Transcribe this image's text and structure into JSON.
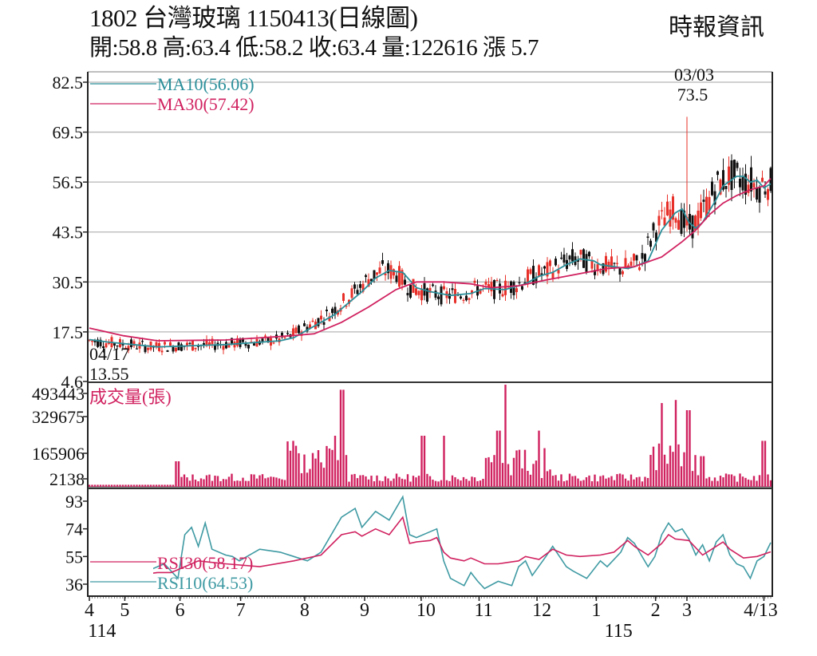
{
  "header": {
    "title": "1802  台灣玻璃 1150413(日線圖)",
    "ohlc_line": "開:58.8 高:63.4 低:58.2 收:63.4 量:122616 漲 5.7",
    "source": "時報資訊"
  },
  "chart_data": [
    {
      "type": "candlestick",
      "title": "1802 台灣玻璃 1150413(日線圖)",
      "summary": {
        "stock_code": "1802",
        "stock_name": "台灣玻璃",
        "date": "1150413",
        "period": "日線圖",
        "open": 58.8,
        "high": 63.4,
        "low": 58.2,
        "close": 63.4,
        "volume": 122616,
        "change": 5.7
      },
      "ylim": [
        4.6,
        82.5
      ],
      "yticks": [
        "82.5",
        "69.5",
        "56.5",
        "43.5",
        "30.5",
        "17.5",
        "4.6"
      ],
      "grid": true,
      "legend": [
        {
          "name": "MA10",
          "value": "56.06",
          "label": "MA10(56.06)",
          "color": "#2b8f9a"
        },
        {
          "name": "MA30",
          "value": "57.42",
          "label": "MA30(57.42)",
          "color": "#d0215f"
        }
      ],
      "annotations": [
        {
          "date": "03/03",
          "value": "73.5",
          "kind": "high"
        },
        {
          "date": "04/17",
          "value": "13.55",
          "kind": "low"
        }
      ],
      "up_color": "#e8302a",
      "down_color": "#111111",
      "series": [
        {
          "name": "MA10",
          "points": [
            [
              0,
              15.5
            ],
            [
              0.03,
              14.8
            ],
            [
              0.1,
              13.6
            ],
            [
              0.2,
              14.2
            ],
            [
              0.28,
              15.2
            ],
            [
              0.3,
              16.0
            ],
            [
              0.33,
              19
            ],
            [
              0.36,
              22
            ],
            [
              0.38,
              25
            ],
            [
              0.4,
              28
            ],
            [
              0.42,
              31.5
            ],
            [
              0.44,
              33.5
            ],
            [
              0.46,
              33
            ],
            [
              0.48,
              29
            ],
            [
              0.5,
              28
            ],
            [
              0.53,
              27
            ],
            [
              0.56,
              27.5
            ],
            [
              0.58,
              28.8
            ],
            [
              0.61,
              28.5
            ],
            [
              0.64,
              30
            ],
            [
              0.66,
              32
            ],
            [
              0.68,
              33
            ],
            [
              0.7,
              35
            ],
            [
              0.72,
              36.5
            ],
            [
              0.74,
              36
            ],
            [
              0.75,
              35
            ],
            [
              0.77,
              34.5
            ],
            [
              0.79,
              34
            ],
            [
              0.8,
              34.5
            ],
            [
              0.82,
              36
            ],
            [
              0.84,
              44
            ],
            [
              0.86,
              48.5
            ],
            [
              0.87,
              49.5
            ],
            [
              0.88,
              46
            ],
            [
              0.89,
              44.5
            ],
            [
              0.9,
              46
            ],
            [
              0.92,
              52
            ],
            [
              0.93,
              55.5
            ],
            [
              0.95,
              58
            ],
            [
              0.96,
              58
            ],
            [
              0.97,
              56.5
            ],
            [
              0.98,
              57
            ],
            [
              0.99,
              55
            ],
            [
              1.0,
              56.06
            ]
          ]
        },
        {
          "name": "MA30",
          "points": [
            [
              0,
              18.5
            ],
            [
              0.05,
              16.5
            ],
            [
              0.1,
              15.2
            ],
            [
              0.2,
              15.4
            ],
            [
              0.28,
              16.3
            ],
            [
              0.33,
              17
            ],
            [
              0.37,
              20
            ],
            [
              0.41,
              24
            ],
            [
              0.45,
              28.5
            ],
            [
              0.48,
              30.5
            ],
            [
              0.52,
              30.5
            ],
            [
              0.56,
              30
            ],
            [
              0.59,
              29
            ],
            [
              0.63,
              29.5
            ],
            [
              0.67,
              31
            ],
            [
              0.7,
              32
            ],
            [
              0.73,
              33
            ],
            [
              0.76,
              34
            ],
            [
              0.8,
              34.5
            ],
            [
              0.84,
              37
            ],
            [
              0.87,
              41
            ],
            [
              0.89,
              44
            ],
            [
              0.91,
              48
            ],
            [
              0.93,
              51
            ],
            [
              0.95,
              53
            ],
            [
              0.97,
              54.5
            ],
            [
              0.99,
              55.5
            ],
            [
              1.0,
              57.42
            ]
          ]
        }
      ]
    },
    {
      "type": "bar",
      "title": "成交量(張)",
      "legend_label": "成交量(張)",
      "yticks": [
        "493443",
        "329675",
        "165906",
        "2138"
      ],
      "ylim": [
        0,
        520000
      ],
      "color": "#d0215f",
      "approx_peaks": [
        {
          "month": "8/9 boundary",
          "value": 470000
        },
        {
          "month": "11",
          "value": 520000
        },
        {
          "month": "1-2",
          "value": 420000
        },
        {
          "month": "3",
          "value": 380000
        },
        {
          "month": "4/13",
          "value": 122616
        }
      ]
    },
    {
      "type": "line",
      "title": "RSI",
      "yticks": [
        "93",
        "74",
        "55",
        "36"
      ],
      "ylim": [
        30,
        98
      ],
      "legend": [
        {
          "name": "RSI30",
          "value": "58.17",
          "label": "RSI30(58.17)",
          "color": "#d0215f"
        },
        {
          "name": "RSI10",
          "value": "64.53",
          "label": "RSI10(64.53)",
          "color": "#3f9aa3"
        }
      ],
      "series": [
        {
          "name": "RSI10",
          "points": [
            [
              0,
              34
            ],
            [
              0.02,
              38
            ],
            [
              0.04,
              35
            ],
            [
              0.06,
              40
            ],
            [
              0.08,
              44
            ],
            [
              0.1,
              48
            ],
            [
              0.11,
              50
            ],
            [
              0.12,
              45
            ],
            [
              0.13,
              40
            ],
            [
              0.14,
              70
            ],
            [
              0.15,
              75
            ],
            [
              0.16,
              62
            ],
            [
              0.17,
              78
            ],
            [
              0.18,
              60
            ],
            [
              0.2,
              56
            ],
            [
              0.21,
              55
            ],
            [
              0.22,
              52
            ],
            [
              0.25,
              60
            ],
            [
              0.28,
              58
            ],
            [
              0.3,
              55
            ],
            [
              0.32,
              52
            ],
            [
              0.34,
              58
            ],
            [
              0.37,
              82
            ],
            [
              0.39,
              88
            ],
            [
              0.4,
              75
            ],
            [
              0.42,
              86
            ],
            [
              0.44,
              80
            ],
            [
              0.46,
              96
            ],
            [
              0.47,
              70
            ],
            [
              0.48,
              68
            ],
            [
              0.5,
              72
            ],
            [
              0.51,
              74
            ],
            [
              0.52,
              52
            ],
            [
              0.53,
              40
            ],
            [
              0.55,
              35
            ],
            [
              0.56,
              44
            ],
            [
              0.57,
              38
            ],
            [
              0.58,
              33
            ],
            [
              0.6,
              38
            ],
            [
              0.62,
              35
            ],
            [
              0.63,
              48
            ],
            [
              0.64,
              52
            ],
            [
              0.65,
              42
            ],
            [
              0.67,
              55
            ],
            [
              0.68,
              62
            ],
            [
              0.69,
              55
            ],
            [
              0.7,
              48
            ],
            [
              0.71,
              45
            ],
            [
              0.73,
              40
            ],
            [
              0.75,
              52
            ],
            [
              0.76,
              48
            ],
            [
              0.78,
              58
            ],
            [
              0.79,
              68
            ],
            [
              0.8,
              64
            ],
            [
              0.81,
              56
            ],
            [
              0.82,
              48
            ],
            [
              0.83,
              55
            ],
            [
              0.84,
              70
            ],
            [
              0.85,
              78
            ],
            [
              0.86,
              72
            ],
            [
              0.87,
              74
            ],
            [
              0.88,
              67
            ],
            [
              0.89,
              56
            ],
            [
              0.9,
              63
            ],
            [
              0.91,
              52
            ],
            [
              0.92,
              65
            ],
            [
              0.93,
              70
            ],
            [
              0.94,
              56
            ],
            [
              0.95,
              50
            ],
            [
              0.96,
              48
            ],
            [
              0.97,
              40
            ],
            [
              0.98,
              52
            ],
            [
              0.99,
              55
            ],
            [
              1.0,
              64.53
            ]
          ]
        },
        {
          "name": "RSI30",
          "points": [
            [
              0,
              40
            ],
            [
              0.05,
              41
            ],
            [
              0.1,
              44
            ],
            [
              0.12,
              44
            ],
            [
              0.14,
              48
            ],
            [
              0.16,
              52
            ],
            [
              0.2,
              50
            ],
            [
              0.25,
              48
            ],
            [
              0.3,
              52
            ],
            [
              0.34,
              56
            ],
            [
              0.37,
              70
            ],
            [
              0.39,
              72
            ],
            [
              0.4,
              69
            ],
            [
              0.42,
              74
            ],
            [
              0.44,
              70
            ],
            [
              0.46,
              82
            ],
            [
              0.47,
              64
            ],
            [
              0.48,
              65
            ],
            [
              0.5,
              66
            ],
            [
              0.51,
              68
            ],
            [
              0.52,
              58
            ],
            [
              0.53,
              54
            ],
            [
              0.55,
              52
            ],
            [
              0.56,
              54
            ],
            [
              0.58,
              50
            ],
            [
              0.6,
              50
            ],
            [
              0.63,
              52
            ],
            [
              0.64,
              55
            ],
            [
              0.66,
              53
            ],
            [
              0.68,
              60
            ],
            [
              0.7,
              56
            ],
            [
              0.72,
              55
            ],
            [
              0.75,
              56
            ],
            [
              0.77,
              58
            ],
            [
              0.79,
              66
            ],
            [
              0.8,
              62
            ],
            [
              0.82,
              56
            ],
            [
              0.84,
              64
            ],
            [
              0.85,
              70
            ],
            [
              0.86,
              67
            ],
            [
              0.88,
              66
            ],
            [
              0.9,
              56
            ],
            [
              0.92,
              62
            ],
            [
              0.93,
              65
            ],
            [
              0.94,
              60
            ],
            [
              0.96,
              54
            ],
            [
              0.98,
              55
            ],
            [
              1.0,
              58.17
            ]
          ]
        }
      ]
    }
  ],
  "x_axis": {
    "labels": [
      {
        "text": "4",
        "pos": 0.0
      },
      {
        "text": "5",
        "pos": 0.052
      },
      {
        "text": "6",
        "pos": 0.133
      },
      {
        "text": "7",
        "pos": 0.222
      },
      {
        "text": "8",
        "pos": 0.316
      },
      {
        "text": "9",
        "pos": 0.404
      },
      {
        "text": "10",
        "pos": 0.487
      },
      {
        "text": "11",
        "pos": 0.572
      },
      {
        "text": "12",
        "pos": 0.657
      },
      {
        "text": "1",
        "pos": 0.744
      },
      {
        "text": "2",
        "pos": 0.831
      },
      {
        "text": "3",
        "pos": 0.877
      },
      {
        "text": "4/13",
        "pos": 0.99
      }
    ],
    "year_labels": [
      {
        "text": "114",
        "pos": 0.005
      },
      {
        "text": "115",
        "pos": 0.763
      }
    ]
  }
}
